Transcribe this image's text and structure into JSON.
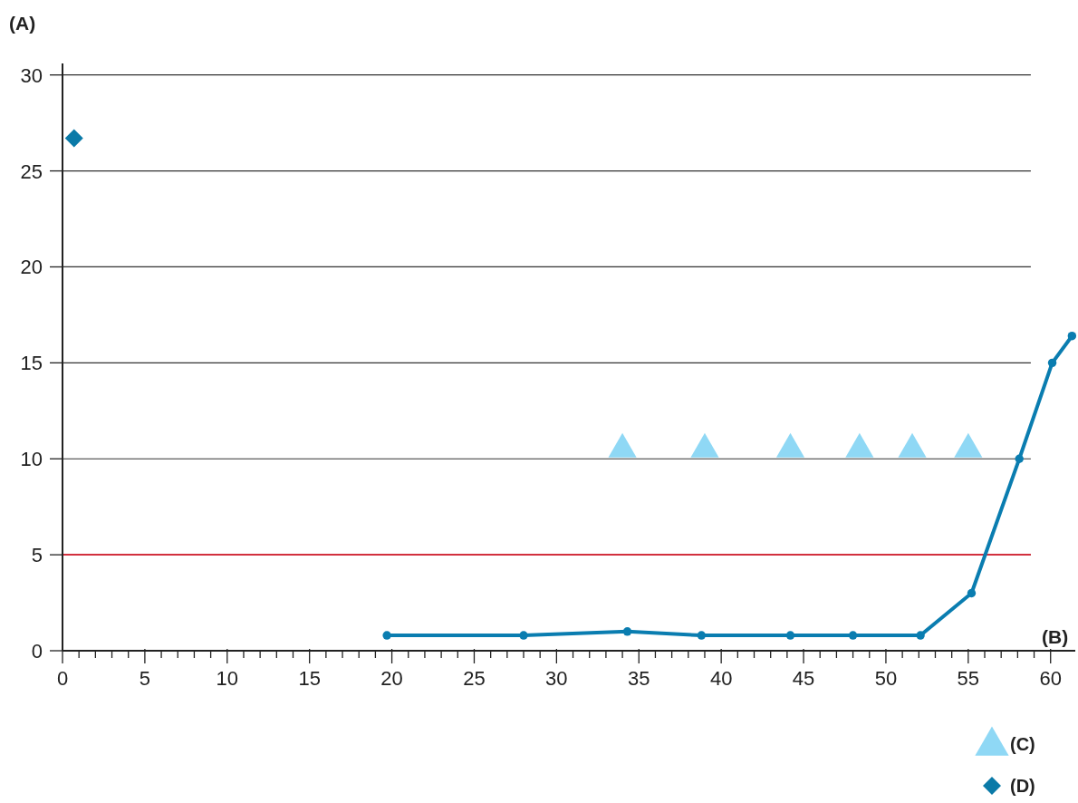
{
  "chart_data": {
    "type": "line",
    "xlabel": "(B)",
    "ylabel": "(A)",
    "xlim": [
      0,
      61.5
    ],
    "ylim": [
      0,
      30.6
    ],
    "xticks": [
      0,
      {
        "value": 1,
        "label": null
      },
      {
        "value": 2,
        "label": null
      },
      {
        "value": 3,
        "label": null
      },
      {
        "value": 4,
        "label": null
      },
      5,
      {
        "value": 6,
        "label": null
      },
      {
        "value": 7,
        "label": null
      },
      {
        "value": 8,
        "label": null
      },
      {
        "value": 9,
        "label": null
      },
      10,
      {
        "value": 11,
        "label": null
      },
      {
        "value": 12,
        "label": null
      },
      {
        "value": 13,
        "label": null
      },
      {
        "value": 14,
        "label": null
      },
      15,
      {
        "value": 16,
        "label": null
      },
      {
        "value": 17,
        "label": null
      },
      {
        "value": 18,
        "label": null
      },
      {
        "value": 19,
        "label": null
      },
      20,
      {
        "value": 21,
        "label": null
      },
      {
        "value": 22,
        "label": null
      },
      {
        "value": 23,
        "label": null
      },
      {
        "value": 24,
        "label": null
      },
      25,
      {
        "value": 26,
        "label": null
      },
      {
        "value": 27,
        "label": null
      },
      {
        "value": 28,
        "label": null
      },
      {
        "value": 29,
        "label": null
      },
      30,
      {
        "value": 31,
        "label": null
      },
      {
        "value": 32,
        "label": null
      },
      {
        "value": 33,
        "label": null
      },
      {
        "value": 34,
        "label": null
      },
      35,
      {
        "value": 36,
        "label": null
      },
      {
        "value": 37,
        "label": null
      },
      {
        "value": 38,
        "label": null
      },
      {
        "value": 39,
        "label": null
      },
      40,
      {
        "value": 41,
        "label": null
      },
      {
        "value": 42,
        "label": null
      },
      {
        "value": 43,
        "label": null
      },
      {
        "value": 44,
        "label": null
      },
      45,
      {
        "value": 46,
        "label": null
      },
      {
        "value": 47,
        "label": null
      },
      {
        "value": 48,
        "label": null
      },
      {
        "value": 49,
        "label": null
      },
      50,
      {
        "value": 51,
        "label": null
      },
      {
        "value": 52,
        "label": null
      },
      {
        "value": 53,
        "label": null
      },
      {
        "value": 54,
        "label": null
      },
      55,
      {
        "value": 56,
        "label": null
      },
      {
        "value": 57,
        "label": null
      },
      {
        "value": 58,
        "label": null
      },
      {
        "value": 59,
        "label": null
      },
      60
    ],
    "yticks": [
      0,
      5,
      10,
      15,
      20,
      25,
      30
    ],
    "grid": "y",
    "legend": "bottom right",
    "ref_lines": [
      {
        "axis": "y",
        "value": 5,
        "color": "#d2303e"
      }
    ],
    "series": [
      {
        "color": "#0a7db0",
        "marker": "circle",
        "x": [
          19.7,
          28,
          34.3,
          38.8,
          44.2,
          48,
          52.1,
          55.2,
          58.1,
          60.1,
          61.3
        ],
        "values": [
          0.8,
          0.8,
          1.0,
          0.8,
          0.8,
          0.8,
          0.8,
          3.0,
          10,
          15,
          16.4
        ]
      },
      {
        "type": "scatter",
        "name": "(C)",
        "color": "#8fd8f5",
        "marker": "triangle",
        "x": [
          34.0,
          39.0,
          44.2,
          48.4,
          51.6,
          55.0
        ],
        "values": [
          10.5,
          10.5,
          10.5,
          10.5,
          10.5,
          10.5
        ]
      },
      {
        "type": "scatter",
        "name": "(D)",
        "color": "#0a7aa8",
        "marker": "diamond",
        "x": [
          0.7
        ],
        "values": [
          26.7
        ]
      }
    ]
  }
}
